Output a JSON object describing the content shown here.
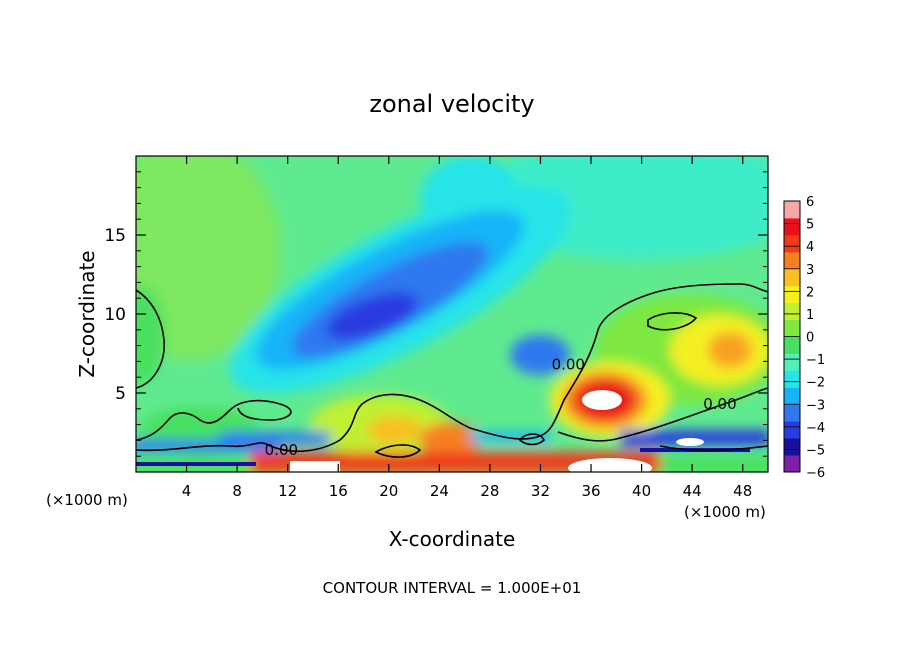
{
  "chart_data": {
    "type": "heatmap",
    "title": "zonal velocity",
    "xlabel": "X-coordinate",
    "ylabel": "Z-coordinate",
    "x_unit_left": "(×1000 m)",
    "x_unit_right": "(×1000 m)",
    "footer": "CONTOUR INTERVAL = 1.000E+01",
    "xlim": [
      0,
      50
    ],
    "ylim": [
      0,
      20
    ],
    "x_ticks": [
      4,
      8,
      12,
      16,
      20,
      24,
      28,
      32,
      36,
      40,
      44,
      48
    ],
    "y_ticks": [
      5,
      10,
      15
    ],
    "colorbar": {
      "min": -6,
      "max": 6,
      "tick_labels": [
        "6",
        "5",
        "4",
        "3",
        "2",
        "1",
        "0",
        "−1",
        "−2",
        "−3",
        "−4",
        "−5",
        "−6"
      ],
      "colors": [
        "#7d1fa8",
        "#1a10a0",
        "#2a3be0",
        "#2f78f0",
        "#18b4f8",
        "#28e4e8",
        "#50f0b8",
        "#48e060",
        "#7ee840",
        "#c0f030",
        "#f4f020",
        "#f8c020",
        "#f88020",
        "#f03a1a",
        "#e8101a",
        "#f4a8a8"
      ]
    },
    "contour_labels": [
      {
        "text": "0.00",
        "x": 11.5,
        "y": 1.4
      },
      {
        "text": "0.00",
        "x": 34.2,
        "y": 6.8
      },
      {
        "text": "0.00",
        "x": 46.2,
        "y": 4.3
      }
    ],
    "field_features": [
      {
        "type": "jet_min",
        "x": 20,
        "z": 9.5,
        "value": -4.5
      },
      {
        "type": "max",
        "x": 37,
        "z": 4.7,
        "value": 6
      },
      {
        "type": "min",
        "x": 44.5,
        "z": 2.0,
        "value": -5.5
      },
      {
        "type": "max",
        "x": 25,
        "z": 1.8,
        "value": 4
      }
    ]
  }
}
